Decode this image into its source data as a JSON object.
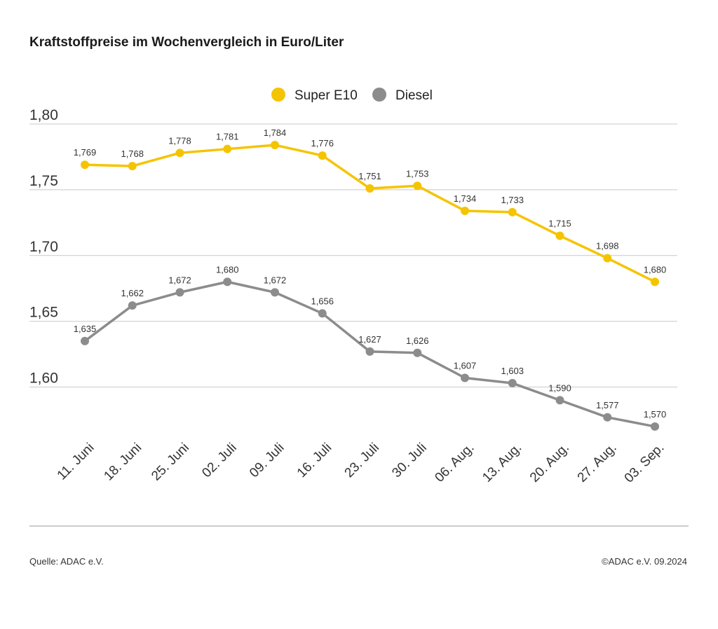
{
  "title": "Kraftstoffpreise im Wochenvergleich in Euro/Liter",
  "footer": {
    "source": "Quelle: ADAC e.V.",
    "copyright": "©ADAC e.V. 09.2024"
  },
  "colors": {
    "super_e10": "#f5c400",
    "diesel": "#8c8c8c",
    "grid": "#c8c8c8"
  },
  "chart_data": {
    "type": "line",
    "categories": [
      "11. Juni",
      "18. Juni",
      "25. Juni",
      "02. Juli",
      "09. Juli",
      "16. Juli",
      "23. Juli",
      "30. Juli",
      "06. Aug.",
      "13. Aug.",
      "20. Aug.",
      "27. Aug.",
      "03. Sep."
    ],
    "series": [
      {
        "name": "Super E10",
        "color": "#f5c400",
        "values": [
          1.769,
          1.768,
          1.778,
          1.781,
          1.784,
          1.776,
          1.751,
          1.753,
          1.734,
          1.733,
          1.715,
          1.698,
          1.68
        ],
        "labels": [
          "1,769",
          "1,768",
          "1,778",
          "1,781",
          "1,784",
          "1,776",
          "1,751",
          "1,753",
          "1,734",
          "1,733",
          "1,715",
          "1,698",
          "1,680"
        ]
      },
      {
        "name": "Diesel",
        "color": "#8c8c8c",
        "values": [
          1.635,
          1.662,
          1.672,
          1.68,
          1.672,
          1.656,
          1.627,
          1.626,
          1.607,
          1.603,
          1.59,
          1.577,
          1.57
        ],
        "labels": [
          "1,635",
          "1,662",
          "1,672",
          "1,680",
          "1,672",
          "1,656",
          "1,627",
          "1,626",
          "1,607",
          "1,603",
          "1,590",
          "1,577",
          "1,570"
        ]
      }
    ],
    "yticks": [
      1.6,
      1.65,
      1.7,
      1.75,
      1.8
    ],
    "ytick_labels": [
      "1,60",
      "1,65",
      "1,70",
      "1,75",
      "1,80"
    ],
    "ylim": [
      1.57,
      1.8
    ],
    "grid": true,
    "legend_position": "top-center",
    "xlabel": "",
    "ylabel": ""
  }
}
